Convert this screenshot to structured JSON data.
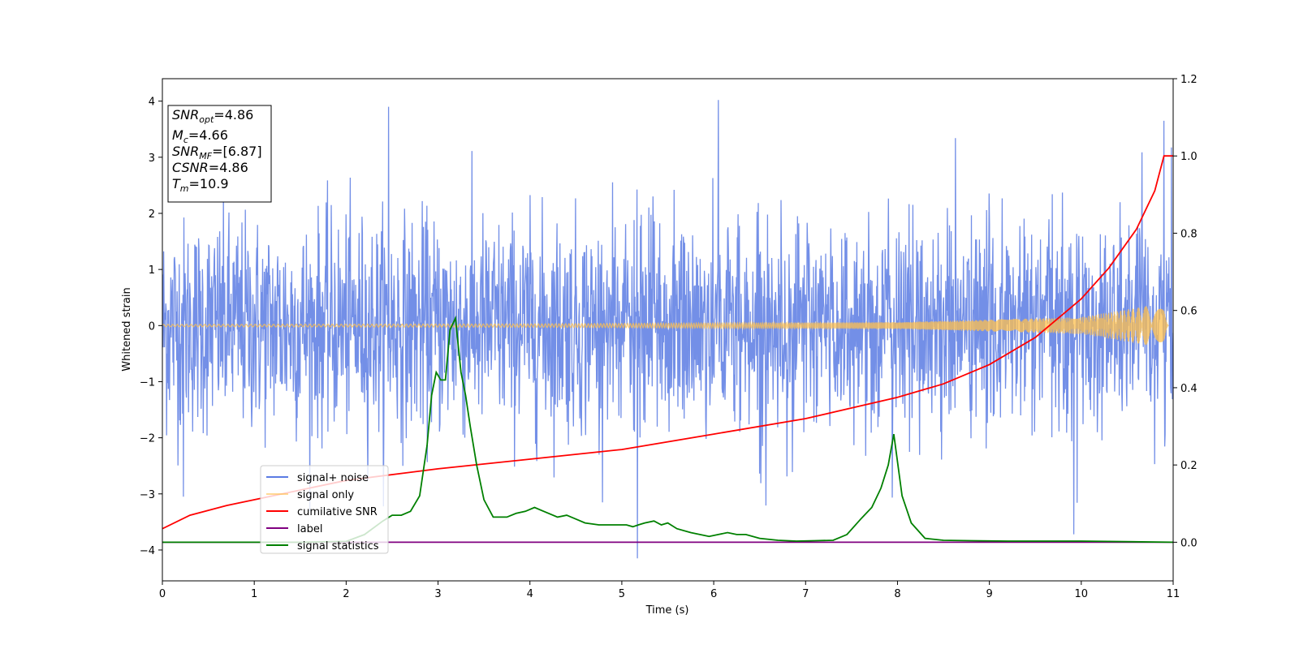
{
  "chart_data": {
    "type": "line",
    "xlabel": "Time (s)",
    "ylabel": "Whitened strain",
    "xlim": [
      0,
      11
    ],
    "ylim_left": [
      -4.55,
      4.4
    ],
    "ylim_right": [
      -0.1,
      1.2
    ],
    "xticks": [
      "0",
      "1",
      "2",
      "3",
      "4",
      "5",
      "6",
      "7",
      "8",
      "9",
      "10",
      "11"
    ],
    "yticks_left": [
      "4",
      "3",
      "2",
      "1",
      "0",
      "−1",
      "−2",
      "−3",
      "−4"
    ],
    "yticks_right": [
      "1.2",
      "1.0",
      "0.8",
      "0.6",
      "0.4",
      "0.2",
      "0.0"
    ],
    "annotation": {
      "lines": [
        {
          "it": "SNR",
          "sub": "opt",
          "rest": "=4.86"
        },
        {
          "it": "M",
          "sub": "c",
          "rest": "=4.66"
        },
        {
          "it": "SNR",
          "sub": "MF",
          "rest": "=[6.87]"
        },
        {
          "it": "CSNR",
          "sub": "",
          "rest": "=4.86"
        },
        {
          "it": "T",
          "sub": "m",
          "rest": "=10.9"
        }
      ]
    },
    "legend_position": "lower-left",
    "series": [
      {
        "name": "signal+ noise",
        "color": "#5a7be3",
        "axis": "left",
        "kind": "noise",
        "amplitude_sigma": 0.95,
        "notable_spikes": [
          [
            2.46,
            3.9
          ],
          [
            6.05,
            4.02
          ],
          [
            5.17,
            -4.15
          ],
          [
            0.23,
            -3.05
          ],
          [
            9.92,
            -3.72
          ],
          [
            10.9,
            3.65
          ]
        ]
      },
      {
        "name": "signal only",
        "color": "#ffc04d",
        "axis": "left",
        "kind": "chirp",
        "envelope": [
          [
            0,
            0.02
          ],
          [
            4,
            0.03
          ],
          [
            8,
            0.06
          ],
          [
            10,
            0.15
          ],
          [
            10.9,
            0.4
          ],
          [
            10.95,
            0
          ]
        ]
      },
      {
        "name": "cumilative SNR",
        "color": "#ff0000",
        "axis": "right",
        "x": [
          0,
          0.3,
          0.7,
          1.2,
          2,
          3,
          4,
          5,
          6,
          7,
          8,
          8.5,
          9,
          9.5,
          10,
          10.3,
          10.6,
          10.8,
          10.9,
          11
        ],
        "y": [
          0.035,
          0.07,
          0.095,
          0.12,
          0.16,
          0.19,
          0.215,
          0.24,
          0.28,
          0.32,
          0.375,
          0.41,
          0.46,
          0.53,
          0.63,
          0.71,
          0.81,
          0.91,
          1.0,
          1.0
        ]
      },
      {
        "name": "label",
        "color": "#800080",
        "axis": "right",
        "x": [
          0,
          11
        ],
        "y": [
          0,
          0
        ]
      },
      {
        "name": "signal statistics",
        "color": "#008000",
        "axis": "right",
        "x": [
          0,
          0.5,
          1,
          1.5,
          2,
          2.2,
          2.4,
          2.5,
          2.6,
          2.7,
          2.8,
          2.88,
          2.93,
          2.98,
          3.03,
          3.08,
          3.13,
          3.19,
          3.25,
          3.3,
          3.35,
          3.42,
          3.5,
          3.6,
          3.75,
          3.85,
          3.95,
          4.05,
          4.15,
          4.3,
          4.4,
          4.5,
          4.6,
          4.75,
          4.85,
          4.95,
          5.05,
          5.12,
          5.18,
          5.25,
          5.35,
          5.43,
          5.5,
          5.6,
          5.75,
          5.95,
          6.05,
          6.15,
          6.25,
          6.35,
          6.5,
          6.7,
          6.9,
          7.1,
          7.3,
          7.45,
          7.6,
          7.72,
          7.82,
          7.9,
          7.96,
          8.05,
          8.15,
          8.3,
          8.5,
          8.8,
          9.2,
          10,
          11
        ],
        "y": [
          0,
          0,
          0,
          0,
          0.002,
          0.02,
          0.055,
          0.07,
          0.07,
          0.08,
          0.12,
          0.25,
          0.38,
          0.44,
          0.42,
          0.42,
          0.55,
          0.58,
          0.44,
          0.38,
          0.3,
          0.2,
          0.11,
          0.065,
          0.065,
          0.075,
          0.08,
          0.09,
          0.08,
          0.065,
          0.07,
          0.06,
          0.05,
          0.045,
          0.045,
          0.045,
          0.045,
          0.04,
          0.045,
          0.05,
          0.055,
          0.045,
          0.05,
          0.035,
          0.025,
          0.015,
          0.02,
          0.025,
          0.02,
          0.02,
          0.01,
          0.005,
          0.003,
          0.004,
          0.005,
          0.02,
          0.06,
          0.09,
          0.14,
          0.2,
          0.28,
          0.12,
          0.05,
          0.01,
          0.005,
          0.004,
          0.003,
          0.003,
          0.0
        ]
      }
    ]
  }
}
